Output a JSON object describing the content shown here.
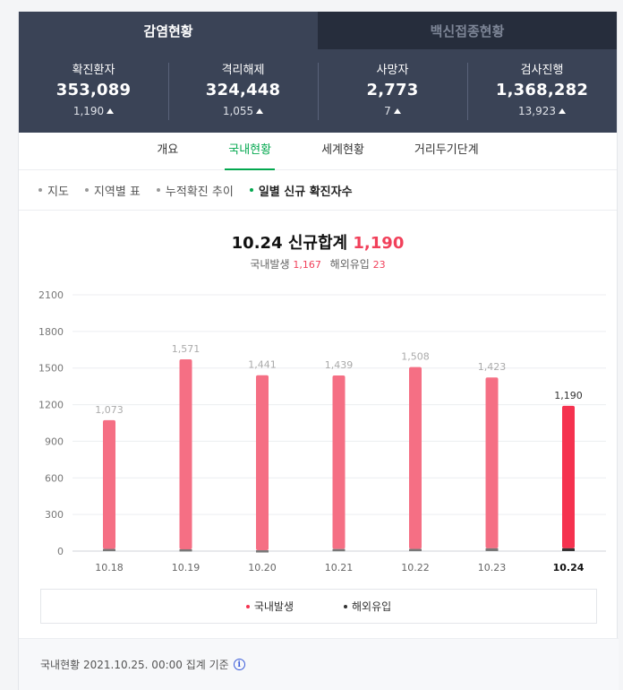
{
  "top_tabs": [
    {
      "label": "감염현황",
      "active": true
    },
    {
      "label": "백신접종현황",
      "active": false
    }
  ],
  "stats": [
    {
      "label": "확진환자",
      "value": "353,089",
      "change": "1,190"
    },
    {
      "label": "격리해제",
      "value": "324,448",
      "change": "1,055"
    },
    {
      "label": "사망자",
      "value": "2,773",
      "change": "7"
    },
    {
      "label": "검사진행",
      "value": "1,368,282",
      "change": "13,923"
    }
  ],
  "nav_tabs": [
    {
      "label": "개요"
    },
    {
      "label": "국내현황"
    },
    {
      "label": "세계현황"
    },
    {
      "label": "거리두기단계"
    }
  ],
  "sub_tabs": [
    {
      "label": "지도"
    },
    {
      "label": "지역별 표"
    },
    {
      "label": "누적확진 추이"
    },
    {
      "label": "일별 신규 확진자수"
    }
  ],
  "chart_header": {
    "date": "10.24",
    "total_label": "신규합계",
    "total": "1,190",
    "domestic_label": "국내발생",
    "domestic": "1,167",
    "overseas_label": "해외유입",
    "overseas": "23"
  },
  "chart_data": {
    "type": "bar",
    "stacked": true,
    "categories": [
      "10.18",
      "10.19",
      "10.20",
      "10.21",
      "10.22",
      "10.23",
      "10.24"
    ],
    "totals": [
      "1,073",
      "1,571",
      "1,441",
      "1,439",
      "1,508",
      "1,423",
      "1,190"
    ],
    "series": [
      {
        "name": "국내발생",
        "values": [
          1055,
          1556,
          1434,
          1422,
          1490,
          1400,
          1167
        ],
        "color": "#f56f84",
        "highlight_color": "#f5324f"
      },
      {
        "name": "해외유입",
        "values": [
          18,
          15,
          7,
          17,
          18,
          23,
          23
        ],
        "color": "#777777",
        "highlight_color": "#333333"
      }
    ],
    "ylim": [
      0,
      2100
    ],
    "yticks": [
      0,
      300,
      600,
      900,
      1200,
      1500,
      1800,
      2100
    ],
    "grid": true,
    "highlight_category": "10.24",
    "legend_position": "bottom"
  },
  "legend": [
    {
      "label": "국내발생",
      "color": "#f5324f"
    },
    {
      "label": "해외유입",
      "color": "#333333"
    }
  ],
  "footer": {
    "text": "국내현황 2021.10.25. 00:00 집계 기준",
    "icon": "info-icon"
  }
}
